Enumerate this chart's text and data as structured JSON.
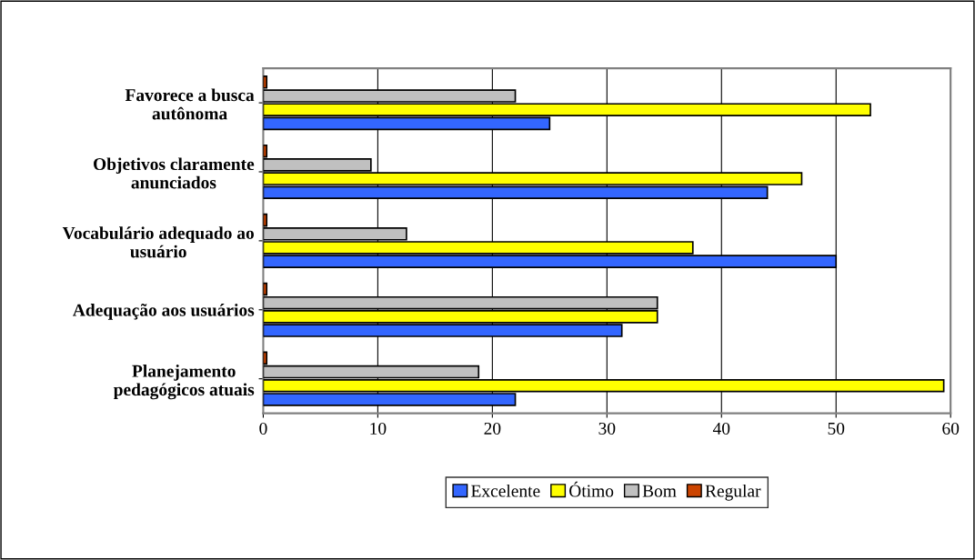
{
  "chart_data": {
    "type": "bar",
    "orientation": "horizontal",
    "categories": [
      "Favorece a busca\nautônoma",
      "Objetivos claramente\nanunciados",
      "Vocabulário adequado ao\nusuário",
      "Adequação aos usuários",
      "Planejamento\npedagógicos atuais"
    ],
    "series": [
      {
        "name": "Excelente",
        "color": "#3366ff",
        "values": [
          25,
          44,
          50,
          31.3,
          22
        ]
      },
      {
        "name": "Ótimo",
        "color": "#ffff00",
        "values": [
          53,
          47,
          37.5,
          34.4,
          59.4
        ]
      },
      {
        "name": "Bom",
        "color": "#c0c0c0",
        "values": [
          22,
          9.4,
          12.5,
          34.4,
          18.8
        ]
      },
      {
        "name": "Regular",
        "color": "#cc4400",
        "values": [
          0.3,
          0.3,
          0.3,
          0.3,
          0.3
        ]
      }
    ],
    "xlim": [
      0,
      60
    ],
    "xticks": [
      0,
      10,
      20,
      30,
      40,
      50,
      60
    ],
    "grid": "x",
    "legend": "bottom"
  }
}
